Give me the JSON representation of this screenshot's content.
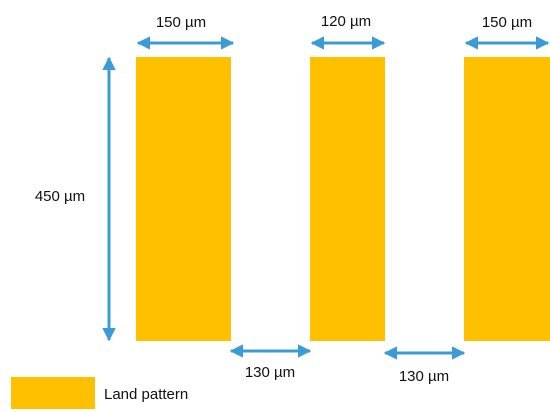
{
  "colors": {
    "land": "#FFC000",
    "arrow": "#3B9BD5",
    "text": "#111111"
  },
  "dimensions": {
    "width_left": "150 µm",
    "width_middle": "120 µm",
    "width_right": "150 µm",
    "height": "450 µm",
    "gap_left": "130 µm",
    "gap_right": "130 µm"
  },
  "legend": {
    "label": "Land pattern"
  }
}
